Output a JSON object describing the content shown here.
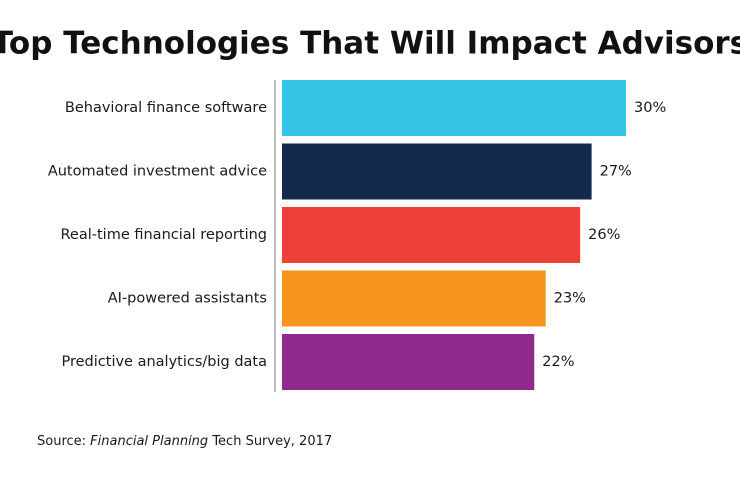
{
  "chart_data": {
    "type": "hbar",
    "title": "Top Technologies That Will Impact Advisors",
    "categories": [
      "Behavioral finance software",
      "Automated investment advice",
      "Real-time financial reporting",
      "AI-powered assistants",
      "Predictive analytics/big data"
    ],
    "values": [
      30,
      27,
      26,
      23,
      22
    ],
    "value_labels": [
      "30%",
      "27%",
      "26%",
      "23%",
      "22%"
    ],
    "colors": [
      "#35c3e6",
      "#13294b",
      "#ee4038",
      "#f7941e",
      "#8f2a8c"
    ],
    "source": [
      "Source: ",
      "Financial Planning",
      " Tech Survey, 2017"
    ]
  }
}
